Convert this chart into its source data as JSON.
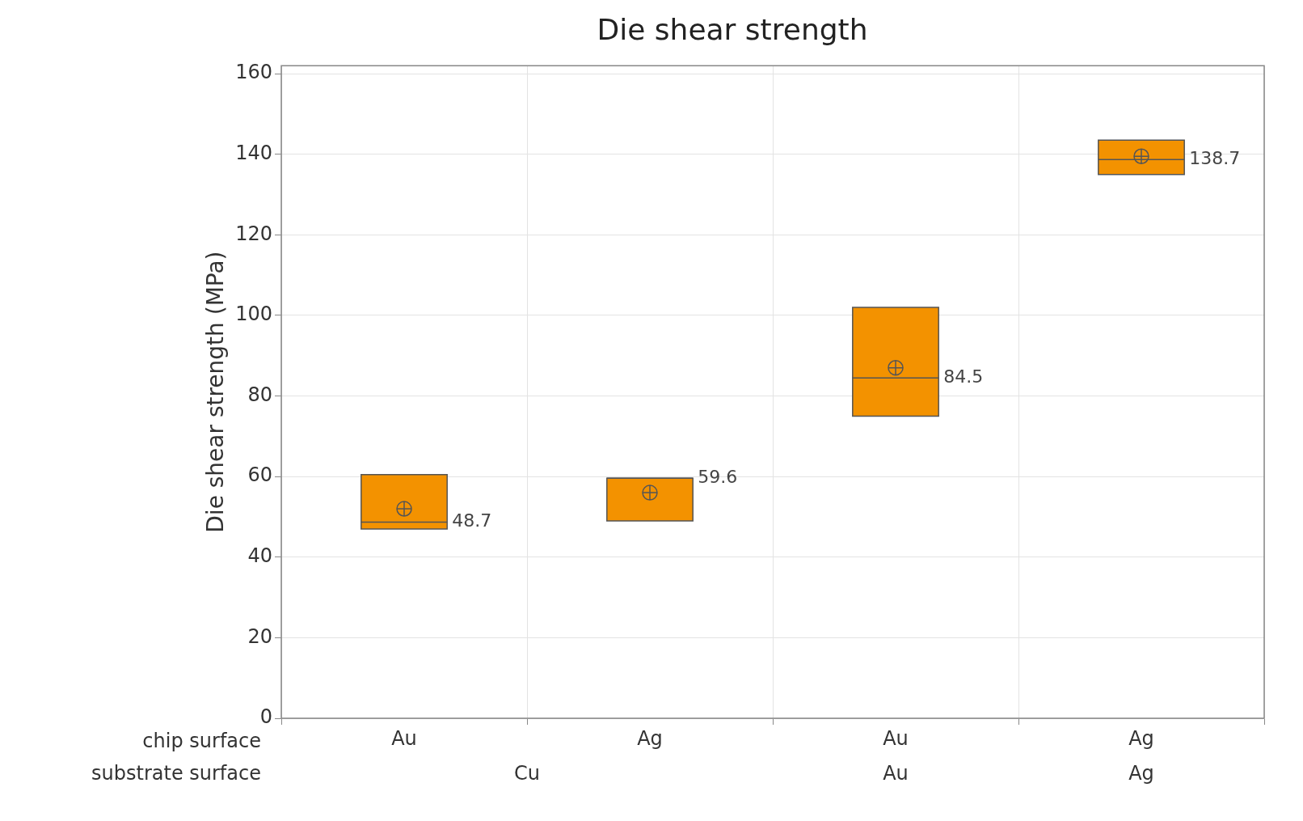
{
  "chart_data": {
    "type": "box",
    "title": "Die shear strength",
    "ylabel": "Die shear strength (MPa)",
    "categories": [
      "Au",
      "Ag",
      "Au",
      "Ag"
    ],
    "annotations": [
      "chip surface",
      "substrate surface",
      "Cu",
      "Au",
      "Ag"
    ],
    "boxes": [
      {
        "low": 47,
        "q1": 47,
        "median": 48.7,
        "q3": 60.5,
        "high": 60.5,
        "mean": 52
      },
      {
        "low": 49,
        "q1": 49,
        "median": 59.6,
        "q3": 59.6,
        "high": 59.6,
        "mean": 56
      },
      {
        "low": 75,
        "q1": 75,
        "median": 84.5,
        "q3": 102,
        "high": 102,
        "mean": 87
      },
      {
        "low": 135,
        "q1": 135,
        "median": 138.7,
        "q3": 143.5,
        "high": 143.5,
        "mean": 139.5
      }
    ],
    "value_labels": [
      "48.7",
      "59.6",
      "84.5",
      "138.7"
    ],
    "color": "#f39200",
    "grid": true,
    "ylim": [
      0,
      162
    ],
    "yticks": [
      0,
      20,
      40,
      60,
      80,
      100,
      120,
      140,
      160
    ]
  }
}
